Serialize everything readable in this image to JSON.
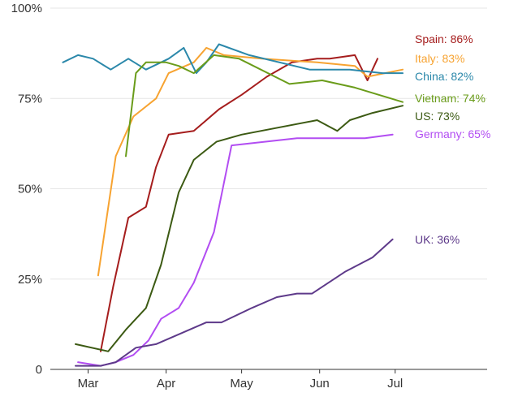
{
  "chart_data": {
    "type": "line",
    "title": "",
    "xlabel": "",
    "ylabel": "",
    "ylim": [
      0,
      100
    ],
    "xlim_days": [
      0,
      160
    ],
    "grid": true,
    "x_ticks": [
      {
        "label": "Mar",
        "date": "2020-03-01"
      },
      {
        "label": "Apr",
        "date": "2020-04-01"
      },
      {
        "label": "May",
        "date": "2020-05-01"
      },
      {
        "label": "Jun",
        "date": "2020-06-01"
      },
      {
        "label": "Jul",
        "date": "2020-07-01"
      }
    ],
    "y_ticks": [
      {
        "value": 0,
        "label": "0"
      },
      {
        "value": 25,
        "label": "25%"
      },
      {
        "value": 50,
        "label": "50%"
      },
      {
        "value": 75,
        "label": "75%"
      },
      {
        "value": 100,
        "label": "100%"
      }
    ],
    "series": [
      {
        "name": "Spain",
        "end_label": "Spain: 86%",
        "color": "#a51d1d",
        "points": [
          [
            "2020-03-06",
            5
          ],
          [
            "2020-03-11",
            23
          ],
          [
            "2020-03-17",
            42
          ],
          [
            "2020-03-24",
            45
          ],
          [
            "2020-03-28",
            56
          ],
          [
            "2020-04-02",
            65
          ],
          [
            "2020-04-12",
            66
          ],
          [
            "2020-04-22",
            72
          ],
          [
            "2020-05-01",
            76
          ],
          [
            "2020-05-11",
            81
          ],
          [
            "2020-05-21",
            85
          ],
          [
            "2020-05-31",
            86
          ],
          [
            "2020-06-05",
            86
          ],
          [
            "2020-06-15",
            87
          ],
          [
            "2020-06-20",
            80
          ],
          [
            "2020-06-24",
            86
          ]
        ]
      },
      {
        "name": "Italy",
        "end_label": "Italy: 83%",
        "color": "#f7a331",
        "points": [
          [
            "2020-03-05",
            26
          ],
          [
            "2020-03-12",
            59
          ],
          [
            "2020-03-19",
            70
          ],
          [
            "2020-03-28",
            75
          ],
          [
            "2020-04-02",
            82
          ],
          [
            "2020-04-12",
            85
          ],
          [
            "2020-04-17",
            89
          ],
          [
            "2020-04-24",
            87
          ],
          [
            "2020-05-09",
            86
          ],
          [
            "2020-05-31",
            85
          ],
          [
            "2020-06-15",
            84
          ],
          [
            "2020-06-20",
            81
          ],
          [
            "2020-07-04",
            83
          ]
        ]
      },
      {
        "name": "China",
        "end_label": "China: 82%",
        "color": "#2b88aa",
        "points": [
          [
            "2020-02-20",
            85
          ],
          [
            "2020-02-26",
            87
          ],
          [
            "2020-03-03",
            86
          ],
          [
            "2020-03-10",
            83
          ],
          [
            "2020-03-17",
            86
          ],
          [
            "2020-03-24",
            83
          ],
          [
            "2020-04-02",
            86
          ],
          [
            "2020-04-08",
            89
          ],
          [
            "2020-04-13",
            82
          ],
          [
            "2020-04-17",
            85
          ],
          [
            "2020-04-22",
            90
          ],
          [
            "2020-05-04",
            87
          ],
          [
            "2020-05-28",
            83
          ],
          [
            "2020-06-13",
            83
          ],
          [
            "2020-06-26",
            82
          ],
          [
            "2020-07-04",
            82
          ]
        ]
      },
      {
        "name": "Vietnam",
        "end_label": "Vietnam: 74%",
        "color": "#6a9c1a",
        "points": [
          [
            "2020-03-16",
            59
          ],
          [
            "2020-03-20",
            82
          ],
          [
            "2020-03-24",
            85
          ],
          [
            "2020-04-01",
            85
          ],
          [
            "2020-04-06",
            84
          ],
          [
            "2020-04-12",
            82
          ],
          [
            "2020-04-20",
            87
          ],
          [
            "2020-04-30",
            86
          ],
          [
            "2020-05-20",
            79
          ],
          [
            "2020-06-02",
            80
          ],
          [
            "2020-06-15",
            78
          ],
          [
            "2020-07-04",
            74
          ]
        ]
      },
      {
        "name": "US",
        "end_label": "US: 73%",
        "color": "#3c5a13",
        "points": [
          [
            "2020-02-25",
            7
          ],
          [
            "2020-03-09",
            5
          ],
          [
            "2020-03-16",
            11
          ],
          [
            "2020-03-24",
            17
          ],
          [
            "2020-03-30",
            29
          ],
          [
            "2020-04-06",
            49
          ],
          [
            "2020-04-12",
            58
          ],
          [
            "2020-04-21",
            63
          ],
          [
            "2020-05-01",
            65
          ],
          [
            "2020-05-31",
            69
          ],
          [
            "2020-06-08",
            66
          ],
          [
            "2020-06-13",
            69
          ],
          [
            "2020-06-22",
            71
          ],
          [
            "2020-07-04",
            73
          ]
        ]
      },
      {
        "name": "Germany",
        "end_label": "Germany: 65%",
        "color": "#b24df2",
        "points": [
          [
            "2020-02-26",
            2
          ],
          [
            "2020-03-06",
            1
          ],
          [
            "2020-03-12",
            2
          ],
          [
            "2020-03-19",
            4
          ],
          [
            "2020-03-25",
            8
          ],
          [
            "2020-03-30",
            14
          ],
          [
            "2020-04-06",
            17
          ],
          [
            "2020-04-12",
            24
          ],
          [
            "2020-04-20",
            38
          ],
          [
            "2020-04-27",
            62
          ],
          [
            "2020-05-23",
            64
          ],
          [
            "2020-06-07",
            64
          ],
          [
            "2020-06-19",
            64
          ],
          [
            "2020-06-30",
            65
          ]
        ]
      },
      {
        "name": "UK",
        "end_label": "UK: 36%",
        "color": "#5e3a8a",
        "points": [
          [
            "2020-02-25",
            1
          ],
          [
            "2020-03-06",
            1
          ],
          [
            "2020-03-12",
            2
          ],
          [
            "2020-03-20",
            6
          ],
          [
            "2020-03-28",
            7
          ],
          [
            "2020-04-17",
            13
          ],
          [
            "2020-04-23",
            13
          ],
          [
            "2020-05-05",
            17
          ],
          [
            "2020-05-15",
            20
          ],
          [
            "2020-05-23",
            21
          ],
          [
            "2020-05-29",
            21
          ],
          [
            "2020-06-11",
            27
          ],
          [
            "2020-06-22",
            31
          ],
          [
            "2020-06-30",
            36
          ]
        ]
      }
    ]
  }
}
